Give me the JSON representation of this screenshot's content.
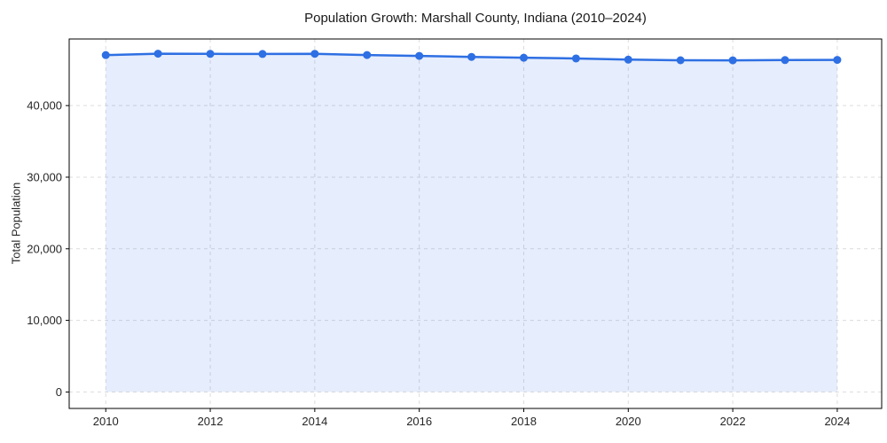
{
  "page": {
    "background": "#ffffff"
  },
  "chart_data": {
    "type": "line",
    "title": "Population Growth: Marshall County, Indiana (2010–2024)",
    "xlabel": "",
    "ylabel": "Total Population",
    "x": [
      2010,
      2011,
      2012,
      2013,
      2014,
      2015,
      2016,
      2017,
      2018,
      2019,
      2020,
      2021,
      2022,
      2023,
      2024
    ],
    "series": [
      {
        "name": "Total Population",
        "values": [
          47050,
          47250,
          47220,
          47210,
          47230,
          47060,
          46940,
          46800,
          46680,
          46580,
          46420,
          46330,
          46320,
          46360,
          46380
        ]
      }
    ],
    "xlim": [
      2009.3,
      2024.85
    ],
    "ylim": [
      -2300,
      49300
    ],
    "yticks": [
      0,
      10000,
      20000,
      30000,
      40000
    ],
    "ytick_labels": [
      "0",
      "10,000",
      "20,000",
      "30,000",
      "40,000"
    ],
    "xticks": [
      2010,
      2012,
      2014,
      2016,
      2018,
      2020,
      2022,
      2024
    ],
    "xtick_labels": [
      "2010",
      "2012",
      "2014",
      "2016",
      "2018",
      "2020",
      "2022",
      "2024"
    ],
    "grid": true,
    "grid_style": "dashed",
    "legend": "none",
    "line_color": "#2e6fe3",
    "line_width": 2.5,
    "marker": "circle",
    "marker_color": "#2e6fe3",
    "marker_radius": 4.5,
    "fill": true,
    "fill_color": "#2e6fe3",
    "fill_opacity": 0.12,
    "grid_color": "#dcdcdc",
    "spine_color": "#000000",
    "tick_color": "#000000",
    "tick_label_color": "#262626",
    "title_color": "#1a1a1a"
  }
}
